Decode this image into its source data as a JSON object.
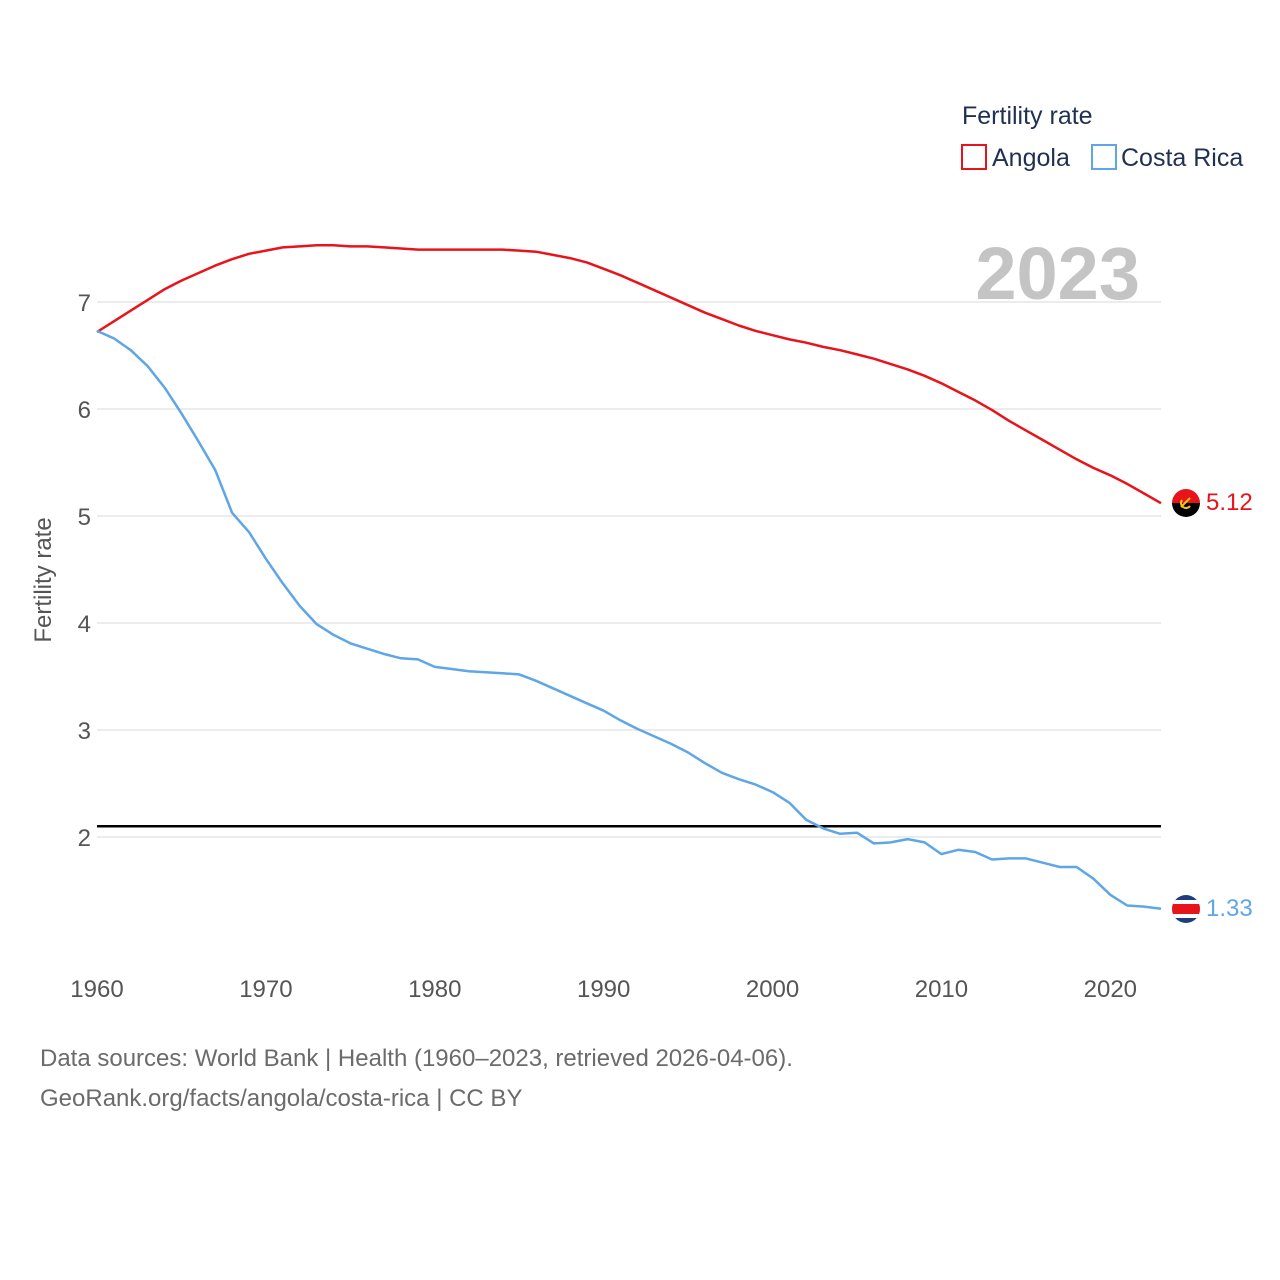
{
  "chart_data": {
    "type": "line",
    "legend_title": "Fertility rate",
    "ylabel": "Fertility rate",
    "current_year": "2023",
    "xlim": [
      1960,
      2023
    ],
    "ylim": [
      1,
      7.6
    ],
    "x_ticks": [
      1960,
      1970,
      1980,
      1990,
      2000,
      2010,
      2020
    ],
    "y_ticks": [
      2,
      3,
      4,
      5,
      6,
      7
    ],
    "reference_line": {
      "value": 2.1,
      "color": "#000000"
    },
    "series": [
      {
        "name": "Angola",
        "color": "#e8141c",
        "end_label": "5.12",
        "x": [
          1960,
          1961,
          1962,
          1963,
          1964,
          1965,
          1966,
          1967,
          1968,
          1969,
          1970,
          1971,
          1972,
          1973,
          1974,
          1975,
          1976,
          1977,
          1978,
          1979,
          1980,
          1981,
          1982,
          1983,
          1984,
          1985,
          1986,
          1987,
          1988,
          1989,
          1990,
          1991,
          1992,
          1993,
          1994,
          1995,
          1996,
          1997,
          1998,
          1999,
          2000,
          2001,
          2002,
          2003,
          2004,
          2005,
          2006,
          2007,
          2008,
          2009,
          2010,
          2011,
          2012,
          2013,
          2014,
          2015,
          2016,
          2017,
          2018,
          2019,
          2020,
          2021,
          2022,
          2023
        ],
        "values": [
          6.72,
          6.82,
          6.92,
          7.02,
          7.12,
          7.2,
          7.27,
          7.34,
          7.4,
          7.45,
          7.48,
          7.51,
          7.52,
          7.53,
          7.53,
          7.52,
          7.52,
          7.51,
          7.5,
          7.49,
          7.49,
          7.49,
          7.49,
          7.49,
          7.49,
          7.48,
          7.47,
          7.44,
          7.41,
          7.37,
          7.31,
          7.25,
          7.18,
          7.11,
          7.04,
          6.97,
          6.9,
          6.84,
          6.78,
          6.73,
          6.69,
          6.65,
          6.62,
          6.58,
          6.55,
          6.51,
          6.47,
          6.42,
          6.37,
          6.31,
          6.24,
          6.16,
          6.08,
          5.99,
          5.89,
          5.8,
          5.71,
          5.62,
          5.53,
          5.45,
          5.38,
          5.3,
          5.21,
          5.12
        ]
      },
      {
        "name": "Costa Rica",
        "color": "#5ea6e6",
        "end_label": "1.33",
        "x": [
          1960,
          1961,
          1962,
          1963,
          1964,
          1965,
          1966,
          1967,
          1968,
          1969,
          1970,
          1971,
          1972,
          1973,
          1974,
          1975,
          1976,
          1977,
          1978,
          1979,
          1980,
          1981,
          1982,
          1983,
          1984,
          1985,
          1986,
          1987,
          1988,
          1989,
          1990,
          1991,
          1992,
          1993,
          1994,
          1995,
          1996,
          1997,
          1998,
          1999,
          2000,
          2001,
          2002,
          2003,
          2004,
          2005,
          2006,
          2007,
          2008,
          2009,
          2010,
          2011,
          2012,
          2013,
          2014,
          2015,
          2016,
          2017,
          2018,
          2019,
          2020,
          2021,
          2022,
          2023
        ],
        "values": [
          6.73,
          6.66,
          6.55,
          6.4,
          6.2,
          5.96,
          5.7,
          5.43,
          5.03,
          4.85,
          4.6,
          4.37,
          4.16,
          3.99,
          3.89,
          3.81,
          3.76,
          3.71,
          3.67,
          3.66,
          3.59,
          3.57,
          3.55,
          3.54,
          3.53,
          3.52,
          3.46,
          3.39,
          3.32,
          3.25,
          3.18,
          3.09,
          3.01,
          2.94,
          2.87,
          2.79,
          2.69,
          2.6,
          2.54,
          2.49,
          2.42,
          2.32,
          2.16,
          2.08,
          2.03,
          2.04,
          1.94,
          1.95,
          1.98,
          1.95,
          1.84,
          1.88,
          1.86,
          1.79,
          1.8,
          1.8,
          1.76,
          1.72,
          1.72,
          1.61,
          1.46,
          1.36,
          1.35,
          1.33
        ]
      }
    ]
  },
  "footer": {
    "sources": "Data sources: World Bank | Health (1960–2023, retrieved 2026-04-06).",
    "link": "GeoRank.org/facts/angola/costa-rica | CC BY"
  }
}
